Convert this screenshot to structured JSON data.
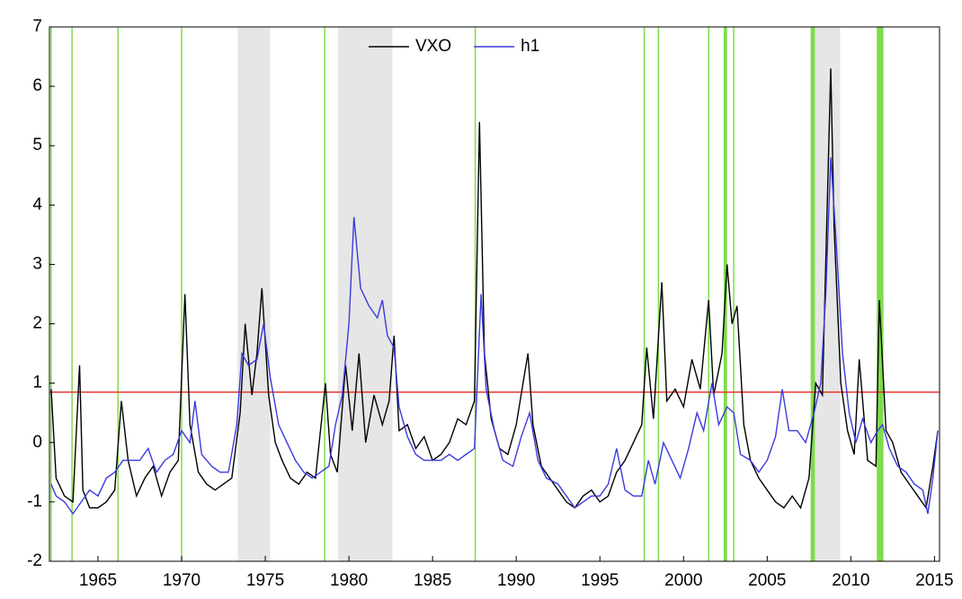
{
  "chart_data": {
    "type": "line",
    "xlim": [
      1962.1,
      2015.3
    ],
    "ylim": [
      -2,
      7
    ],
    "xticks": [
      1965,
      1970,
      1975,
      1980,
      1985,
      1990,
      1995,
      2000,
      2005,
      2010,
      2015
    ],
    "yticks": [
      -2,
      -1,
      0,
      1,
      2,
      3,
      4,
      5,
      6,
      7
    ],
    "hline": 0.85,
    "hline_color": "#e8322a",
    "shaded_regions": [
      [
        1973.35,
        1975.3
      ],
      [
        1979.35,
        1982.6
      ],
      [
        2007.75,
        2009.36
      ]
    ],
    "shade_color": "#e6e6e6",
    "vlines": [
      1962.2,
      1963.45,
      1966.2,
      1970.0,
      1978.55,
      1987.55,
      1997.65,
      1998.5,
      2001.5,
      2003.0
    ],
    "vline_color": "#7ddc4a",
    "green_bands": [
      [
        2002.4,
        2002.6
      ],
      [
        2007.6,
        2007.85
      ],
      [
        2011.55,
        2011.95
      ]
    ],
    "series": [
      {
        "name": "VXO",
        "color": "#000000",
        "x": [
          1962.2,
          1962.5,
          1963,
          1963.5,
          1963.9,
          1964.1,
          1964.5,
          1965,
          1965.5,
          1966,
          1966.4,
          1966.8,
          1967.3,
          1967.8,
          1968.3,
          1968.8,
          1969.3,
          1969.8,
          1970.2,
          1970.5,
          1971,
          1971.5,
          1972,
          1972.5,
          1973,
          1973.5,
          1973.8,
          1974.2,
          1974.5,
          1974.8,
          1975.2,
          1975.6,
          1976,
          1976.5,
          1977,
          1977.5,
          1978,
          1978.6,
          1978.9,
          1979.3,
          1979.8,
          1980.2,
          1980.6,
          1981,
          1981.5,
          1982,
          1982.4,
          1982.7,
          1983,
          1983.5,
          1984,
          1984.5,
          1985,
          1985.5,
          1986,
          1986.5,
          1987,
          1987.5,
          1987.8,
          1988.1,
          1988.5,
          1989,
          1989.5,
          1990,
          1990.7,
          1991,
          1991.5,
          1992,
          1992.5,
          1993,
          1993.5,
          1994,
          1994.5,
          1995,
          1995.5,
          1996,
          1996.5,
          1997,
          1997.5,
          1997.8,
          1998.2,
          1998.7,
          1999,
          1999.5,
          2000,
          2000.5,
          2001,
          2001.5,
          2001.8,
          2002.3,
          2002.6,
          2002.9,
          2003.2,
          2003.6,
          2004,
          2004.5,
          2005,
          2005.5,
          2006,
          2006.5,
          2007,
          2007.5,
          2007.9,
          2008.3,
          2008.8,
          2009,
          2009.4,
          2009.8,
          2010.2,
          2010.5,
          2011,
          2011.5,
          2011.7,
          2012.1,
          2012.5,
          2013,
          2013.5,
          2014,
          2014.5,
          2014.9,
          2015.2
        ],
        "values": [
          0.9,
          -0.6,
          -0.9,
          -1.0,
          1.3,
          -0.8,
          -1.1,
          -1.1,
          -1.0,
          -0.8,
          0.7,
          -0.3,
          -0.9,
          -0.6,
          -0.4,
          -0.9,
          -0.5,
          -0.3,
          2.5,
          0.3,
          -0.5,
          -0.7,
          -0.8,
          -0.7,
          -0.6,
          0.5,
          2.0,
          0.8,
          1.5,
          2.6,
          0.8,
          0.0,
          -0.3,
          -0.6,
          -0.7,
          -0.5,
          -0.6,
          1.0,
          -0.2,
          -0.5,
          1.3,
          0.2,
          1.5,
          0.0,
          0.8,
          0.3,
          0.7,
          1.8,
          0.2,
          0.3,
          -0.1,
          0.1,
          -0.3,
          -0.2,
          0.0,
          0.4,
          0.3,
          0.7,
          5.4,
          1.5,
          0.4,
          -0.1,
          -0.2,
          0.3,
          1.5,
          0.3,
          -0.4,
          -0.6,
          -0.8,
          -1.0,
          -1.1,
          -0.9,
          -0.8,
          -1.0,
          -0.9,
          -0.5,
          -0.3,
          0.0,
          0.3,
          1.6,
          0.4,
          2.7,
          0.7,
          0.9,
          0.6,
          1.4,
          0.9,
          2.4,
          0.8,
          1.5,
          3.0,
          2.0,
          2.3,
          0.3,
          -0.3,
          -0.6,
          -0.8,
          -1.0,
          -1.1,
          -0.9,
          -1.1,
          -0.6,
          1.0,
          0.8,
          6.3,
          3.6,
          1.0,
          0.2,
          -0.2,
          1.4,
          -0.3,
          -0.4,
          2.4,
          0.2,
          0.0,
          -0.5,
          -0.7,
          -0.9,
          -1.1,
          -0.4,
          0.2
        ]
      },
      {
        "name": "h1",
        "color": "#3a3adf",
        "x": [
          1962.2,
          1962.5,
          1963,
          1963.5,
          1964,
          1964.5,
          1965,
          1965.5,
          1966,
          1966.5,
          1967,
          1967.5,
          1968,
          1968.5,
          1969,
          1969.5,
          1970,
          1970.5,
          1970.8,
          1971.2,
          1971.8,
          1972.3,
          1972.8,
          1973.3,
          1973.6,
          1974,
          1974.5,
          1974.9,
          1975.3,
          1975.8,
          1976.3,
          1976.8,
          1977.3,
          1977.8,
          1978.3,
          1978.8,
          1979.2,
          1979.6,
          1980,
          1980.3,
          1980.7,
          1981.2,
          1981.7,
          1982,
          1982.3,
          1982.7,
          1983,
          1983.5,
          1984,
          1984.5,
          1985,
          1985.5,
          1986,
          1986.5,
          1987,
          1987.5,
          1987.9,
          1988.2,
          1988.7,
          1989.2,
          1989.8,
          1990.3,
          1990.8,
          1991.3,
          1991.8,
          1992.5,
          1993,
          1993.5,
          1994,
          1994.5,
          1995,
          1995.5,
          1996,
          1996.5,
          1997,
          1997.5,
          1997.9,
          1998.3,
          1998.8,
          1999.3,
          1999.8,
          2000.3,
          2000.8,
          2001.2,
          2001.7,
          2002.1,
          2002.6,
          2003,
          2003.4,
          2004,
          2004.5,
          2005,
          2005.5,
          2005.9,
          2006.3,
          2006.8,
          2007.3,
          2007.8,
          2008.2,
          2008.5,
          2008.8,
          2009.1,
          2009.5,
          2009.9,
          2010.3,
          2010.7,
          2011.2,
          2011.6,
          2011.9,
          2012.3,
          2012.8,
          2013.3,
          2013.8,
          2014.3,
          2014.6,
          2014.9,
          2015.2
        ],
        "values": [
          -0.7,
          -0.9,
          -1.0,
          -1.2,
          -1.0,
          -0.8,
          -0.9,
          -0.6,
          -0.5,
          -0.3,
          -0.3,
          -0.3,
          -0.1,
          -0.5,
          -0.3,
          -0.2,
          0.2,
          0.0,
          0.7,
          -0.2,
          -0.4,
          -0.5,
          -0.5,
          0.3,
          1.5,
          1.3,
          1.4,
          2.0,
          1.1,
          0.3,
          0.0,
          -0.3,
          -0.5,
          -0.6,
          -0.5,
          -0.4,
          0.3,
          0.8,
          2.0,
          3.8,
          2.6,
          2.3,
          2.1,
          2.4,
          1.8,
          1.6,
          0.6,
          0.1,
          -0.2,
          -0.3,
          -0.3,
          -0.3,
          -0.2,
          -0.3,
          -0.2,
          -0.1,
          2.5,
          0.9,
          0.2,
          -0.3,
          -0.4,
          0.1,
          0.5,
          -0.3,
          -0.6,
          -0.7,
          -0.9,
          -1.1,
          -1.0,
          -0.9,
          -0.9,
          -0.7,
          -0.1,
          -0.8,
          -0.9,
          -0.9,
          -0.3,
          -0.7,
          0.0,
          -0.3,
          -0.6,
          -0.1,
          0.5,
          0.2,
          1.0,
          0.3,
          0.6,
          0.5,
          -0.2,
          -0.3,
          -0.5,
          -0.3,
          0.1,
          0.9,
          0.2,
          0.2,
          0.0,
          0.5,
          1.0,
          2.5,
          4.8,
          3.5,
          1.5,
          0.5,
          0.0,
          0.4,
          0.0,
          0.2,
          0.3,
          -0.1,
          -0.4,
          -0.5,
          -0.7,
          -0.8,
          -1.2,
          -0.6,
          0.2
        ]
      }
    ]
  }
}
